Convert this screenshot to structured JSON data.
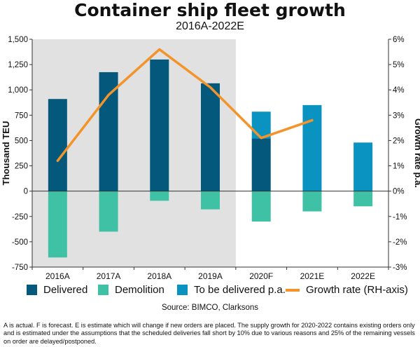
{
  "title": "Container ship fleet growth",
  "subtitle": "2016A-2022E",
  "source": "Source: BIMCO, Clarksons",
  "note": "A is actual. F is forecast. E is estimate which will change if new orders are placed. The supply growth for 2020-2022 contains existing orders only and is estimated under the assumptions that the scheduled deliveries fall short by 10% due to various reasons and 25% of the remaining vessels on order are delayed/postponed.",
  "colors": {
    "delivered": "#03587b",
    "demolition": "#3fc1a5",
    "to_be_delivered": "#0a93c1",
    "growth": "#f39329",
    "shade": "#e1e1e1"
  },
  "legend": [
    {
      "label": "Delivered",
      "color": "#03587b",
      "kind": "box"
    },
    {
      "label": "Demolition",
      "color": "#3fc1a5",
      "kind": "box"
    },
    {
      "label": "To be delivered p.a.",
      "color": "#0a93c1",
      "kind": "box"
    },
    {
      "label": "Growth rate (RH-axis)",
      "color": "#f39329",
      "kind": "line"
    }
  ],
  "chart_data": {
    "type": "bar",
    "title": "Container ship fleet growth",
    "subtitle": "2016A-2022E",
    "categories": [
      "2016A",
      "2017A",
      "2018A",
      "2019A",
      "2020F",
      "2021E",
      "2022E"
    ],
    "ylabel": "Thousand TEU",
    "y2label": "Growth rate p.a.",
    "ylim": [
      -750,
      1500
    ],
    "yticks": [
      -750,
      -500,
      -250,
      0,
      250,
      500,
      750,
      1000,
      1250,
      1500
    ],
    "ytick_labels": [
      "-750",
      "-500",
      "-250",
      "0",
      "250",
      "500",
      "750",
      "1,000",
      "1,250",
      "1,500"
    ],
    "y2lim": [
      -3,
      6
    ],
    "y2ticks": [
      -3,
      -2,
      -1,
      0,
      1,
      2,
      3,
      4,
      5,
      6
    ],
    "y2tick_labels": [
      "-3%",
      "-2%",
      "-1%",
      "0%",
      "1%",
      "2%",
      "3%",
      "4%",
      "5%",
      "6%"
    ],
    "shaded_categories": [
      "2016A",
      "2017A",
      "2018A",
      "2019A"
    ],
    "series": [
      {
        "name": "Delivered",
        "type": "bar",
        "values": [
          910,
          1175,
          1300,
          1065,
          520,
          null,
          null
        ]
      },
      {
        "name": "To be delivered p.a.",
        "type": "bar",
        "values": [
          null,
          null,
          null,
          null,
          265,
          850,
          480
        ]
      },
      {
        "name": "Demolition",
        "type": "bar",
        "values": [
          -655,
          -400,
          -95,
          -180,
          -300,
          -200,
          -150
        ]
      },
      {
        "name": "Growth rate (RH-axis)",
        "type": "line",
        "axis": "right",
        "values": [
          1.2,
          3.8,
          5.6,
          4.1,
          2.1,
          2.8,
          null
        ]
      }
    ],
    "legend_position": "bottom",
    "grid": false
  }
}
